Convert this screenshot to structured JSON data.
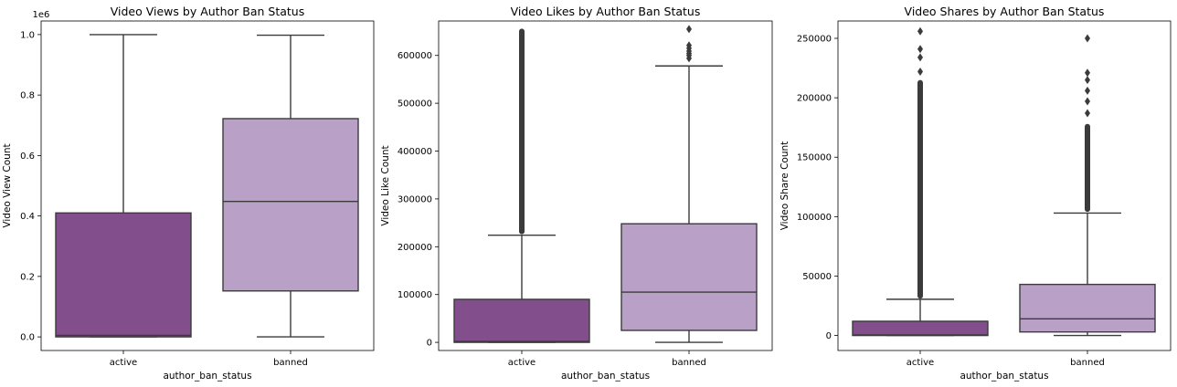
{
  "colors": {
    "active": "#824E8C",
    "banned": "#B9A0C7",
    "line": "#3b3b3b",
    "flier": "#3b3b3b"
  },
  "chart_data": [
    {
      "type": "box",
      "title": "Video Views by Author Ban Status",
      "xlabel": "author_ban_status",
      "ylabel": "Video View Count",
      "offset_label": "1e6",
      "categories": [
        "active",
        "banned"
      ],
      "ylim": [
        -0.045,
        1.045
      ],
      "yticks": [
        0.0,
        0.2,
        0.4,
        0.6,
        0.8,
        1.0
      ],
      "ytick_labels": [
        "0.0",
        "0.2",
        "0.4",
        "0.6",
        "0.8",
        "1.0"
      ],
      "boxes": [
        {
          "category": "active",
          "whislo": 0.0,
          "q1": 0.0,
          "med": 0.005,
          "q3": 0.41,
          "whishi": 1.0,
          "fliers": []
        },
        {
          "category": "banned",
          "whislo": 0.0,
          "q1": 0.152,
          "med": 0.448,
          "q3": 0.722,
          "whishi": 0.998,
          "fliers": []
        }
      ]
    },
    {
      "type": "box",
      "title": "Video Likes by Author Ban Status",
      "xlabel": "author_ban_status",
      "ylabel": "Video Like Count",
      "categories": [
        "active",
        "banned"
      ],
      "ylim": [
        -17000,
        672000
      ],
      "yticks": [
        0,
        100000,
        200000,
        300000,
        400000,
        500000,
        600000
      ],
      "ytick_labels": [
        "0",
        "100000",
        "200000",
        "300000",
        "400000",
        "500000",
        "600000"
      ],
      "boxes": [
        {
          "category": "active",
          "whislo": 0,
          "q1": 0,
          "med": 2000,
          "q3": 90000,
          "whishi": 224000,
          "flier_range": [
            226000,
            656000
          ]
        },
        {
          "category": "banned",
          "whislo": 0,
          "q1": 25000,
          "med": 105000,
          "q3": 248000,
          "whishi": 578000,
          "fliers": [
            594000,
            600000,
            604000,
            609000,
            615000,
            621000,
            655000
          ]
        }
      ]
    },
    {
      "type": "box",
      "title": "Video Shares by Author Ban Status",
      "xlabel": "author_ban_status",
      "ylabel": "Video Share Count",
      "categories": [
        "active",
        "banned"
      ],
      "ylim": [
        -12600,
        264600
      ],
      "yticks": [
        0,
        50000,
        100000,
        150000,
        200000,
        250000
      ],
      "ytick_labels": [
        "0",
        "50000",
        "100000",
        "150000",
        "200000",
        "250000"
      ],
      "boxes": [
        {
          "category": "active",
          "whislo": 0,
          "q1": 0,
          "med": 500,
          "q3": 12000,
          "whishi": 30500,
          "flier_range": [
            31000,
            215000
          ],
          "fliers": [
            222000,
            234000,
            241000,
            256000
          ]
        },
        {
          "category": "banned",
          "whislo": 0,
          "q1": 3000,
          "med": 14000,
          "q3": 43000,
          "whishi": 103000,
          "flier_range": [
            104000,
            178000
          ],
          "fliers": [
            187000,
            197000,
            206000,
            215000,
            221000,
            250000
          ]
        }
      ]
    }
  ]
}
